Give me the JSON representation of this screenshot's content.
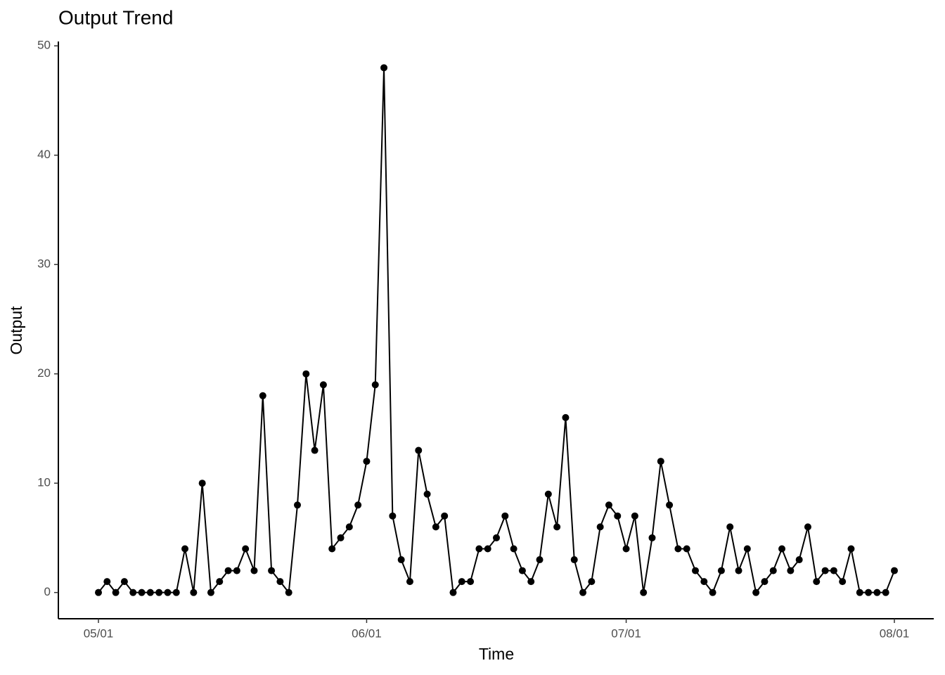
{
  "chart_data": {
    "type": "line",
    "title": "Output Trend",
    "x_label": "Time",
    "y_label": "Output",
    "x": [
      "05/01",
      "05/02",
      "05/03",
      "05/04",
      "05/05",
      "05/06",
      "05/07",
      "05/08",
      "05/09",
      "05/10",
      "05/11",
      "05/12",
      "05/13",
      "05/14",
      "05/15",
      "05/16",
      "05/17",
      "05/18",
      "05/19",
      "05/20",
      "05/21",
      "05/22",
      "05/23",
      "05/24",
      "05/25",
      "05/26",
      "05/27",
      "05/28",
      "05/29",
      "05/30",
      "05/31",
      "06/01",
      "06/02",
      "06/03",
      "06/04",
      "06/05",
      "06/06",
      "06/07",
      "06/08",
      "06/09",
      "06/10",
      "06/11",
      "06/12",
      "06/13",
      "06/14",
      "06/15",
      "06/16",
      "06/17",
      "06/18",
      "06/19",
      "06/20",
      "06/21",
      "06/22",
      "06/23",
      "06/24",
      "06/25",
      "06/26",
      "06/27",
      "06/28",
      "06/29",
      "06/30",
      "07/01",
      "07/02",
      "07/03",
      "07/04",
      "07/05",
      "07/06",
      "07/07",
      "07/08",
      "07/09",
      "07/10",
      "07/11",
      "07/12",
      "07/13",
      "07/14",
      "07/15",
      "07/16",
      "07/17",
      "07/18",
      "07/19",
      "07/20",
      "07/21",
      "07/22",
      "07/23",
      "07/24",
      "07/25",
      "07/26",
      "07/27",
      "07/28",
      "07/29",
      "07/30",
      "07/31",
      "08/01"
    ],
    "series": [
      {
        "name": "Output",
        "color": "#000000",
        "values": [
          0,
          1,
          0,
          1,
          0,
          0,
          0,
          0,
          0,
          0,
          4,
          0,
          10,
          0,
          1,
          2,
          2,
          4,
          2,
          18,
          2,
          1,
          0,
          8,
          20,
          13,
          19,
          4,
          5,
          6,
          8,
          12,
          19,
          48,
          7,
          3,
          1,
          13,
          9,
          6,
          7,
          0,
          1,
          1,
          4,
          4,
          5,
          7,
          4,
          2,
          1,
          3,
          9,
          6,
          16,
          3,
          0,
          1,
          6,
          8,
          7,
          4,
          7,
          0,
          5,
          12,
          8,
          4,
          4,
          2,
          1,
          0,
          2,
          6,
          2,
          4,
          0,
          1,
          2,
          4,
          2,
          3,
          6,
          1,
          2,
          2,
          1,
          4,
          0,
          0,
          0,
          0,
          2
        ]
      }
    ],
    "xticks": [
      "05/01",
      "06/01",
      "07/01",
      "08/01"
    ],
    "ylim": [
      -2.4,
      50.4
    ],
    "yticks": [
      0,
      10,
      20,
      30,
      40,
      50
    ],
    "grid": false
  }
}
